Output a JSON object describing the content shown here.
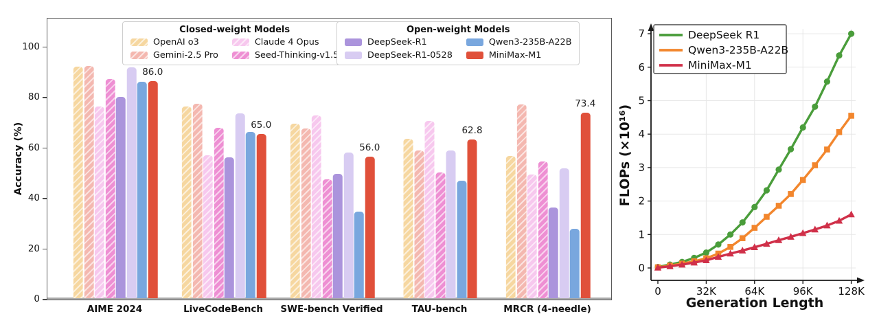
{
  "figure": {
    "left_title": "",
    "left_ylabel": "Accuracy (%)",
    "legend_closed_title": "Closed-weight Models",
    "legend_open_title": "Open-weight Models",
    "right_xlabel": "Generation Length",
    "right_ylabel": "FLOPs (×10¹⁶)"
  },
  "chart_data": [
    {
      "type": "bar",
      "title": "",
      "ylabel": "Accuracy (%)",
      "ylim": [
        0,
        111
      ],
      "yticks": [
        0,
        20,
        40,
        60,
        80,
        100
      ],
      "grid": false,
      "categories": [
        "AIME 2024",
        "LiveCodeBench",
        "SWE-bench Verified",
        "TAU-bench",
        "MRCR (4-needle)"
      ],
      "legend_groups": [
        {
          "id": "closed",
          "title": "Closed-weight Models"
        },
        {
          "id": "open",
          "title": "Open-weight Models"
        }
      ],
      "series": [
        {
          "name": "OpenAI o3",
          "group": "closed",
          "color": "#F6D7A0",
          "hatch": true,
          "values": [
            91.6,
            75.8,
            69.1,
            63.0,
            56.2
          ]
        },
        {
          "name": "Gemini-2.5 Pro",
          "group": "closed",
          "color": "#F4B8B0",
          "hatch": true,
          "values": [
            92.0,
            77.1,
            67.2,
            58.5,
            76.8
          ]
        },
        {
          "name": "Claude 4 Opus",
          "group": "closed",
          "color": "#F7C8EE",
          "hatch": true,
          "values": [
            76.0,
            56.6,
            72.5,
            70.3,
            48.9
          ]
        },
        {
          "name": "Seed-Thinking-v1.5",
          "group": "closed",
          "color": "#EE8FD3",
          "hatch": true,
          "values": [
            86.7,
            67.5,
            47.0,
            49.9,
            54.1
          ]
        },
        {
          "name": "DeepSeek-R1",
          "group": "open",
          "color": "#AB94DC",
          "hatch": false,
          "values": [
            79.8,
            55.9,
            49.2,
            null,
            35.8
          ]
        },
        {
          "name": "DeepSeek-R1-0528",
          "group": "open",
          "color": "#D8CCF2",
          "hatch": false,
          "values": [
            91.4,
            73.1,
            57.6,
            58.4,
            51.4
          ]
        },
        {
          "name": "Qwen3-235B-A22B",
          "group": "open",
          "color": "#79A7DE",
          "hatch": false,
          "values": [
            85.7,
            65.9,
            34.4,
            46.5,
            27.6
          ]
        },
        {
          "name": "MiniMax-M1",
          "group": "open",
          "color": "#E0503A",
          "hatch": false,
          "annotated": true,
          "values": [
            86.0,
            65.0,
            56.0,
            62.8,
            73.4
          ]
        }
      ],
      "annotations": [
        "86.0",
        "65.0",
        "56.0",
        "62.8",
        "73.4"
      ],
      "legend_position": "top"
    },
    {
      "type": "line",
      "title": "",
      "xlabel": "Generation Length",
      "ylabel": "FLOPs (×10¹⁶)",
      "xlim": [
        0,
        128
      ],
      "ylim": [
        0,
        7
      ],
      "grid": true,
      "xticks": [
        {
          "v": 0,
          "label": "0"
        },
        {
          "v": 32,
          "label": "32K"
        },
        {
          "v": 64,
          "label": "64K"
        },
        {
          "v": 96,
          "label": "96K"
        },
        {
          "v": 128,
          "label": "128K"
        }
      ],
      "yticks": [
        0,
        1,
        2,
        3,
        4,
        5,
        6,
        7
      ],
      "x_unit": "K tokens",
      "x": [
        0,
        8,
        16,
        24,
        32,
        40,
        48,
        56,
        64,
        72,
        80,
        88,
        96,
        104,
        112,
        120,
        128
      ],
      "series": [
        {
          "name": "DeepSeek R1",
          "color": "#4A9D3B",
          "marker": "circle",
          "values": [
            0.03,
            0.1,
            0.18,
            0.3,
            0.46,
            0.7,
            1.0,
            1.36,
            1.82,
            2.32,
            2.94,
            3.55,
            4.2,
            4.82,
            5.57,
            6.35,
            7.0
          ]
        },
        {
          "name": "Qwen3-235B-A22B",
          "color": "#F2862D",
          "marker": "square",
          "values": [
            0.02,
            0.07,
            0.13,
            0.2,
            0.29,
            0.43,
            0.63,
            0.89,
            1.2,
            1.53,
            1.86,
            2.21,
            2.63,
            3.07,
            3.54,
            4.06,
            4.55
          ]
        },
        {
          "name": "MiniMax-M1",
          "color": "#D03049",
          "marker": "triangle",
          "values": [
            0.01,
            0.05,
            0.1,
            0.16,
            0.23,
            0.33,
            0.43,
            0.52,
            0.62,
            0.72,
            0.83,
            0.93,
            1.04,
            1.15,
            1.27,
            1.41,
            1.6
          ]
        }
      ],
      "legend_position": "upper left"
    }
  ]
}
